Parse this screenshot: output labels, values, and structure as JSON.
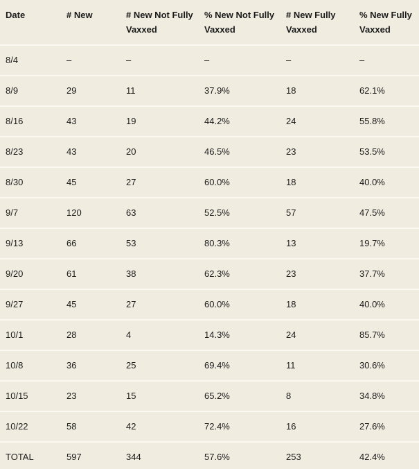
{
  "page": {
    "background_color": "#f0ede0",
    "separator_color": "#faf8ef",
    "text_color": "#1b1b1b"
  },
  "table": {
    "headers": [
      "Date",
      "# New",
      "# New Not Fully Vaxxed",
      "% New Not Fully Vaxxed",
      "# New Fully Vaxxed",
      "% New Fully Vaxxed"
    ],
    "rows": [
      [
        "8/4",
        "–",
        "–",
        "–",
        "–",
        "–"
      ],
      [
        "8/9",
        "29",
        "11",
        "37.9%",
        "18",
        "62.1%"
      ],
      [
        "8/16",
        "43",
        "19",
        "44.2%",
        "24",
        "55.8%"
      ],
      [
        "8/23",
        "43",
        "20",
        "46.5%",
        "23",
        "53.5%"
      ],
      [
        "8/30",
        "45",
        "27",
        "60.0%",
        "18",
        "40.0%"
      ],
      [
        "9/7",
        "120",
        "63",
        "52.5%",
        "57",
        "47.5%"
      ],
      [
        "9/13",
        "66",
        "53",
        "80.3%",
        "13",
        "19.7%"
      ],
      [
        "9/20",
        "61",
        "38",
        "62.3%",
        "23",
        "37.7%"
      ],
      [
        "9/27",
        "45",
        "27",
        "60.0%",
        "18",
        "40.0%"
      ],
      [
        "10/1",
        "28",
        "4",
        "14.3%",
        "24",
        "85.7%"
      ],
      [
        "10/8",
        "36",
        "25",
        "69.4%",
        "11",
        "30.6%"
      ],
      [
        "10/15",
        "23",
        "15",
        "65.2%",
        "8",
        "34.8%"
      ],
      [
        "10/22",
        "58",
        "42",
        "72.4%",
        "16",
        "27.6%"
      ],
      [
        "TOTAL",
        "597",
        "344",
        "57.6%",
        "253",
        "42.4%"
      ]
    ]
  },
  "chart_data": {
    "type": "table",
    "title": "",
    "columns": [
      "Date",
      "# New",
      "# New Not Fully Vaxxed",
      "% New Not Fully Vaxxed",
      "# New Fully Vaxxed",
      "% New Fully Vaxxed"
    ],
    "rows": [
      [
        "8/4",
        null,
        null,
        null,
        null,
        null
      ],
      [
        "8/9",
        29,
        11,
        37.9,
        18,
        62.1
      ],
      [
        "8/16",
        43,
        19,
        44.2,
        24,
        55.8
      ],
      [
        "8/23",
        43,
        20,
        46.5,
        23,
        53.5
      ],
      [
        "8/30",
        45,
        27,
        60.0,
        18,
        40.0
      ],
      [
        "9/7",
        120,
        63,
        52.5,
        57,
        47.5
      ],
      [
        "9/13",
        66,
        53,
        80.3,
        13,
        19.7
      ],
      [
        "9/20",
        61,
        38,
        62.3,
        23,
        37.7
      ],
      [
        "9/27",
        45,
        27,
        60.0,
        18,
        40.0
      ],
      [
        "10/1",
        28,
        4,
        14.3,
        24,
        85.7
      ],
      [
        "10/8",
        36,
        25,
        69.4,
        11,
        30.6
      ],
      [
        "10/15",
        23,
        15,
        65.2,
        8,
        34.8
      ],
      [
        "10/22",
        58,
        42,
        72.4,
        16,
        27.6
      ],
      [
        "TOTAL",
        597,
        344,
        57.6,
        253,
        42.4
      ]
    ]
  }
}
